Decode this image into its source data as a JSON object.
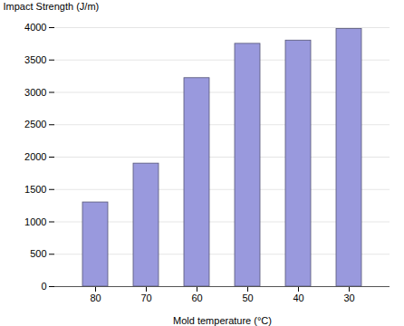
{
  "chart_data": {
    "type": "bar",
    "categories": [
      "80",
      "70",
      "60",
      "50",
      "40",
      "30"
    ],
    "values": [
      1300,
      1900,
      3220,
      3750,
      3800,
      3980
    ],
    "color": "#9999dd",
    "xlabel": "Mold temperature (°C)",
    "ylabel": "Impact Strength (J/m)",
    "ylim": [
      0,
      4000
    ],
    "yticks": [
      0,
      500,
      1000,
      1500,
      2000,
      2500,
      3000,
      3500,
      4000
    ],
    "grid": true
  }
}
